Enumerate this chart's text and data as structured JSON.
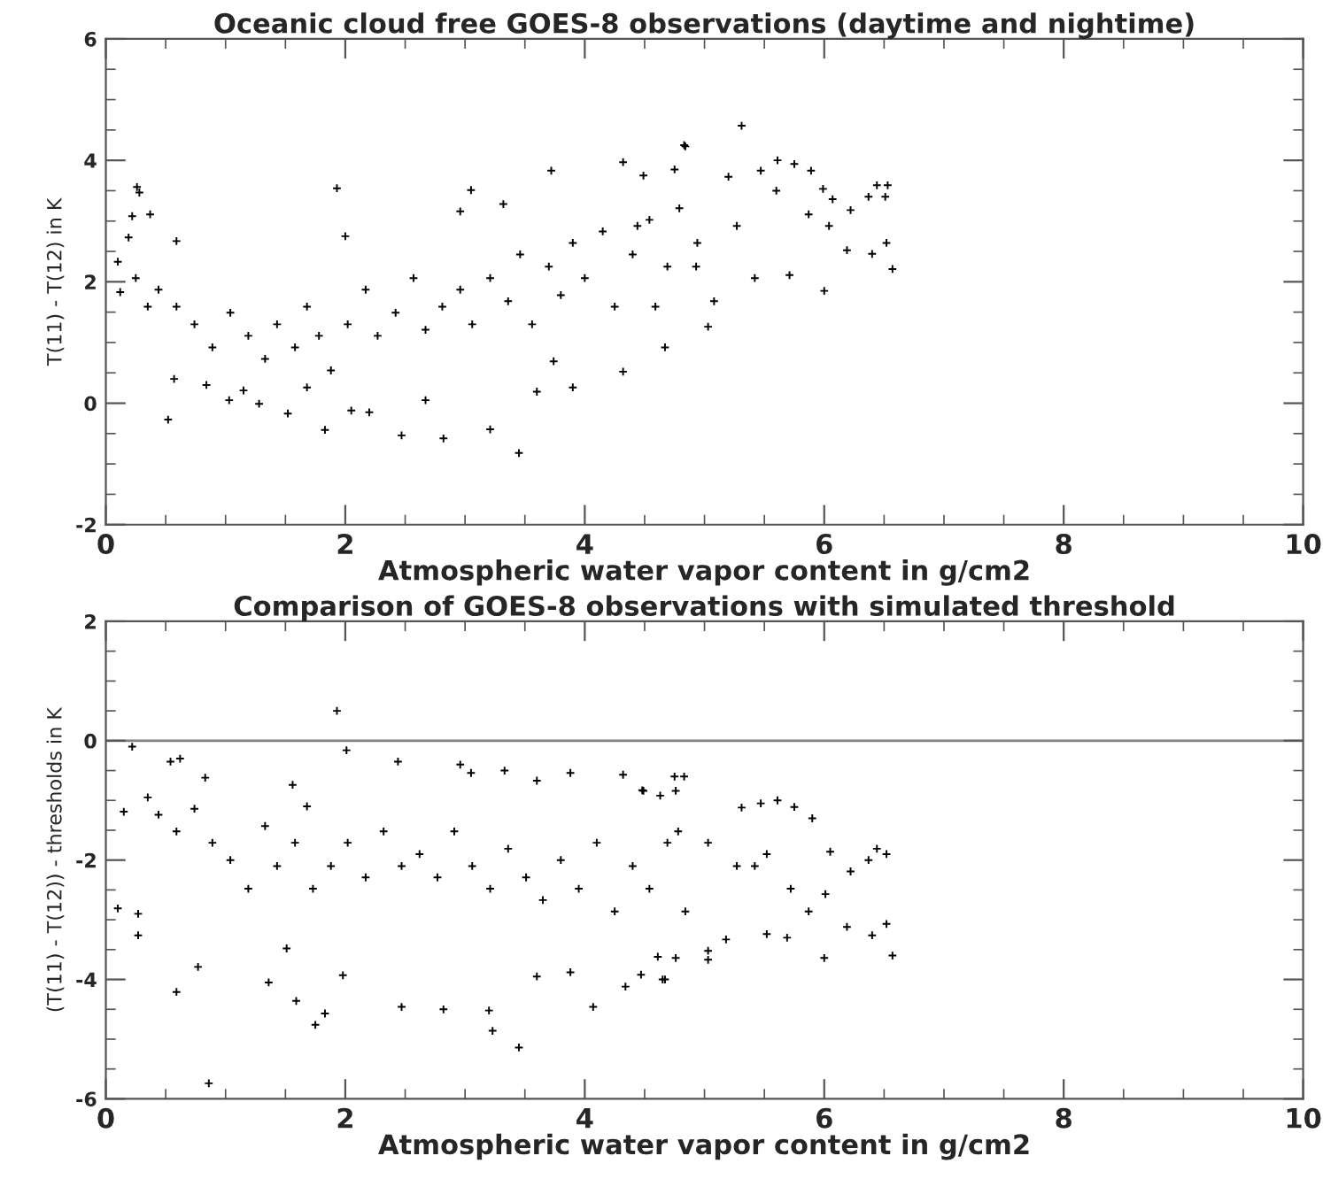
{
  "chart_data": [
    {
      "type": "scatter",
      "title": "Oceanic cloud free GOES-8 observations (daytime and nightime)",
      "xlabel": "Atmospheric water vapor content in g/cm2",
      "ylabel": "T(11) - T(12) in K",
      "xlim": [
        0,
        10
      ],
      "ylim": [
        -2,
        6
      ],
      "xticks": [
        0,
        2,
        4,
        6,
        8,
        10
      ],
      "yticks": [
        -2,
        0,
        2,
        4,
        6
      ],
      "marker": "cross",
      "grid": false,
      "series": [
        {
          "color": "#000000",
          "x": [
            0.1,
            0.26,
            0.28,
            0.22,
            0.37,
            0.19,
            0.59,
            0.12,
            0.35,
            0.52,
            0.57,
            0.84,
            1.03,
            1.15,
            1.28,
            1.52,
            1.68,
            1.83,
            1.93,
            2.0,
            2.05,
            2.2,
            2.47,
            2.67,
            2.82,
            2.96,
            3.05,
            3.21,
            3.32,
            3.45,
            3.6,
            3.72,
            3.74,
            3.9,
            4.32,
            4.32,
            4.49,
            4.67,
            4.84,
            4.75,
            0.25,
            0.44,
            0.59,
            0.74,
            0.89,
            1.04,
            1.19,
            1.33,
            1.43,
            1.58,
            1.68,
            1.78,
            1.88,
            2.02,
            2.17,
            2.27,
            2.42,
            2.57,
            2.67,
            2.81,
            2.96,
            3.06,
            3.21,
            3.36,
            3.46,
            3.56,
            3.7,
            3.8,
            3.9,
            4.0,
            4.15,
            4.25,
            4.4,
            4.54,
            4.69,
            4.79,
            4.94,
            4.44,
            4.59,
            4.83,
            4.93,
            5.03,
            5.08,
            5.2,
            5.27,
            5.31,
            5.42,
            5.47,
            5.6,
            5.61,
            5.71,
            5.75,
            5.89,
            5.87,
            5.99,
            6.0,
            6.04,
            6.07,
            6.19,
            6.22,
            6.37,
            6.4,
            6.44,
            6.51,
            6.52,
            6.57,
            6.53
          ],
          "values": [
            2.33,
            3.56,
            3.47,
            3.08,
            3.11,
            2.73,
            2.67,
            1.83,
            1.59,
            -0.27,
            0.4,
            0.3,
            0.05,
            0.21,
            -0.01,
            -0.17,
            0.26,
            -0.44,
            3.54,
            2.75,
            -0.12,
            -0.15,
            -0.53,
            0.05,
            -0.58,
            3.16,
            3.51,
            -0.43,
            3.28,
            -0.82,
            0.19,
            3.83,
            0.69,
            0.26,
            0.52,
            3.97,
            3.75,
            0.92,
            4.23,
            3.85,
            2.06,
            1.87,
            1.59,
            1.3,
            0.92,
            1.49,
            1.11,
            0.73,
            1.3,
            0.92,
            1.59,
            1.11,
            0.54,
            1.3,
            1.87,
            1.11,
            1.49,
            2.06,
            1.21,
            1.59,
            1.87,
            1.3,
            2.06,
            1.68,
            2.45,
            1.3,
            2.25,
            1.78,
            2.64,
            2.06,
            2.83,
            1.59,
            2.45,
            3.02,
            2.25,
            3.21,
            2.64,
            2.92,
            1.59,
            4.25,
            2.25,
            1.26,
            1.68,
            3.73,
            2.92,
            4.57,
            2.06,
            3.83,
            3.5,
            4.0,
            2.11,
            3.94,
            3.83,
            3.11,
            3.53,
            1.85,
            2.92,
            3.36,
            2.52,
            3.18,
            3.4,
            2.46,
            3.59,
            3.4,
            2.64,
            2.21,
            3.59
          ]
        }
      ]
    },
    {
      "type": "scatter",
      "title": "Comparison of GOES-8 observations with simulated threshold",
      "xlabel": "Atmospheric water vapor content in g/cm2",
      "ylabel": "(T(11) - T(12)) - thresholds in K",
      "xlim": [
        0,
        10
      ],
      "ylim": [
        -6,
        2
      ],
      "xticks": [
        0,
        2,
        4,
        6,
        8,
        10
      ],
      "yticks": [
        -6,
        -4,
        -2,
        0,
        2
      ],
      "marker": "cross",
      "grid": false,
      "ref_lines": [
        {
          "axis": "y",
          "value": 0,
          "color": "#808080"
        }
      ],
      "series": [
        {
          "color": "#000000",
          "x": [
            0.1,
            0.22,
            0.27,
            0.27,
            0.59,
            0.86,
            0.77,
            0.54,
            0.62,
            0.83,
            0.35,
            0.15,
            0.44,
            0.59,
            0.74,
            0.89,
            1.04,
            1.19,
            1.33,
            1.43,
            1.58,
            1.73,
            1.88,
            1.93,
            2.01,
            2.02,
            2.17,
            2.32,
            2.47,
            2.62,
            2.77,
            2.91,
            3.06,
            3.21,
            3.36,
            3.51,
            3.65,
            3.8,
            3.95,
            4.1,
            4.25,
            4.4,
            4.54,
            4.69,
            4.84,
            1.68,
            1.56,
            1.51,
            1.59,
            1.75,
            1.83,
            2.44,
            2.47,
            2.82,
            2.96,
            3.05,
            3.2,
            3.23,
            3.45,
            3.33,
            3.6,
            3.6,
            3.88,
            3.88,
            4.07,
            4.32,
            4.34,
            4.49,
            4.67,
            4.75,
            1.98,
            1.36,
            4.48,
            4.63,
            4.76,
            4.83,
            4.61,
            4.76,
            4.47,
            4.65,
            5.03,
            5.03,
            5.31,
            5.47,
            5.61,
            5.75,
            5.9,
            4.78,
            5.03,
            5.27,
            5.52,
            5.72,
            5.87,
            6.01,
            6.0,
            6.05,
            6.19,
            6.22,
            6.37,
            6.4,
            6.44,
            6.52,
            6.52,
            6.57,
            5.52,
            5.18,
            5.69,
            5.42
          ],
          "values": [
            -2.81,
            -0.1,
            -2.9,
            -3.26,
            -4.21,
            -5.74,
            -3.79,
            -0.35,
            -0.3,
            -0.62,
            -0.95,
            -1.19,
            -1.24,
            -1.52,
            -1.14,
            -1.71,
            -2.0,
            -2.48,
            -1.43,
            -2.1,
            -1.71,
            -2.48,
            -2.1,
            0.5,
            -0.16,
            -1.71,
            -2.29,
            -1.52,
            -2.1,
            -1.9,
            -2.29,
            -1.52,
            -2.1,
            -2.48,
            -1.81,
            -2.29,
            -2.67,
            -2.0,
            -2.48,
            -1.71,
            -2.86,
            -2.1,
            -2.48,
            -1.71,
            -2.86,
            -1.1,
            -0.74,
            -3.48,
            -4.36,
            -4.76,
            -4.57,
            -0.35,
            -4.46,
            -4.5,
            -0.4,
            -0.54,
            -4.52,
            -4.86,
            -5.14,
            -0.5,
            -0.67,
            -3.95,
            -0.54,
            -3.88,
            -4.46,
            -0.57,
            -4.12,
            -0.84,
            -4.0,
            -0.6,
            -3.93,
            -4.05,
            -0.83,
            -0.92,
            -0.84,
            -0.6,
            -3.62,
            -3.64,
            -3.92,
            -4.0,
            -3.52,
            -3.67,
            -1.12,
            -1.05,
            -1.0,
            -1.11,
            -1.3,
            -1.52,
            -1.71,
            -2.1,
            -1.9,
            -2.48,
            -2.86,
            -2.57,
            -3.64,
            -1.86,
            -3.12,
            -2.19,
            -2.0,
            -3.26,
            -1.81,
            -1.9,
            -3.07,
            -3.6,
            -3.24,
            -3.33,
            -3.3,
            -2.1
          ]
        }
      ]
    }
  ]
}
